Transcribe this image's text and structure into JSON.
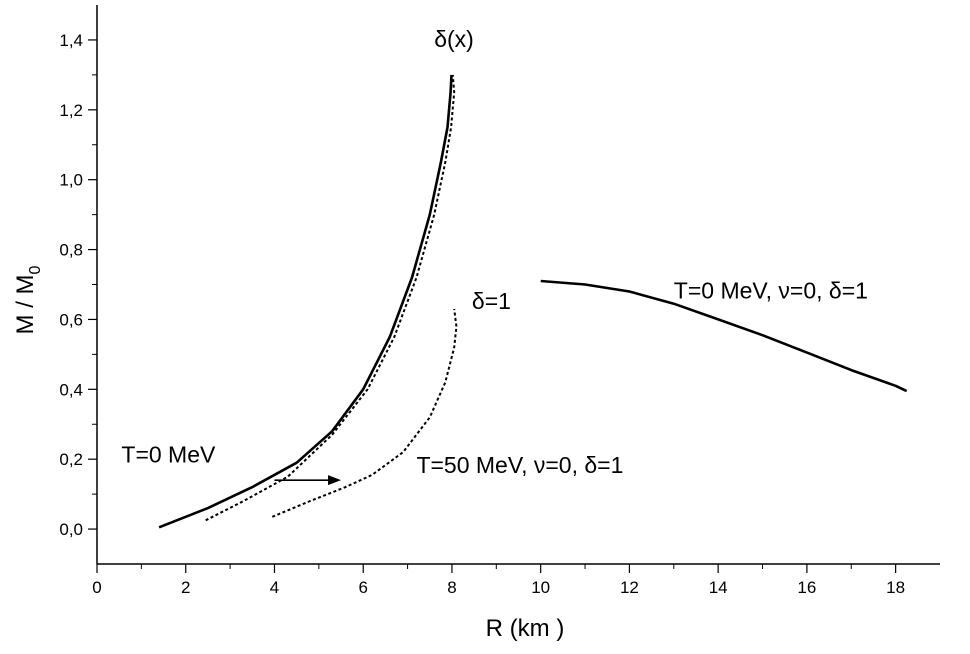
{
  "chart_data": {
    "type": "line",
    "xlabel": "R (km )",
    "ylabel": {
      "main": "M / M",
      "sub": "0"
    },
    "xlim": [
      0,
      19
    ],
    "ylim": [
      -0.1,
      1.5
    ],
    "x_ticks": [
      "0",
      "2",
      "4",
      "6",
      "8",
      "10",
      "12",
      "14",
      "16",
      "18"
    ],
    "y_ticks": [
      "0,0",
      "0,2",
      "0,4",
      "0,6",
      "0,8",
      "1,0",
      "1,2",
      "1,4"
    ],
    "grid": false,
    "series": [
      {
        "style": "solid",
        "points": [
          [
            1.4,
            0.005
          ],
          [
            2.5,
            0.06
          ],
          [
            3.5,
            0.12
          ],
          [
            4.5,
            0.19
          ],
          [
            5.3,
            0.28
          ],
          [
            6.0,
            0.4
          ],
          [
            6.6,
            0.55
          ],
          [
            7.1,
            0.72
          ],
          [
            7.5,
            0.9
          ],
          [
            7.75,
            1.05
          ],
          [
            7.9,
            1.15
          ],
          [
            7.97,
            1.25
          ],
          [
            7.99,
            1.3
          ]
        ]
      },
      {
        "style": "dotted",
        "points": [
          [
            2.45,
            0.025
          ],
          [
            3.3,
            0.08
          ],
          [
            4.3,
            0.15
          ],
          [
            5.3,
            0.27
          ],
          [
            6.1,
            0.4
          ],
          [
            6.7,
            0.55
          ],
          [
            7.2,
            0.72
          ],
          [
            7.6,
            0.9
          ],
          [
            7.85,
            1.05
          ],
          [
            7.98,
            1.15
          ],
          [
            8.05,
            1.25
          ],
          [
            8.02,
            1.3
          ]
        ]
      },
      {
        "style": "dotted",
        "points": [
          [
            3.95,
            0.035
          ],
          [
            4.8,
            0.08
          ],
          [
            5.6,
            0.12
          ],
          [
            6.2,
            0.155
          ],
          [
            6.9,
            0.22
          ],
          [
            7.5,
            0.32
          ],
          [
            7.85,
            0.42
          ],
          [
            8.05,
            0.52
          ],
          [
            8.1,
            0.58
          ],
          [
            8.05,
            0.63
          ]
        ]
      },
      {
        "style": "solid",
        "points": [
          [
            10.0,
            0.71
          ],
          [
            11.0,
            0.7
          ],
          [
            12.0,
            0.68
          ],
          [
            13.0,
            0.645
          ],
          [
            14.0,
            0.6
          ],
          [
            15.0,
            0.555
          ],
          [
            16.0,
            0.505
          ],
          [
            17.0,
            0.455
          ],
          [
            18.0,
            0.41
          ],
          [
            18.25,
            0.395
          ]
        ]
      }
    ],
    "annotations": [
      {
        "text": "δ(x)",
        "x": 7.6,
        "y": 1.38
      },
      {
        "text": "δ=1",
        "x": 8.45,
        "y": 0.63
      },
      {
        "text": "T=0 MeV, ν=0, δ=1",
        "x": 13.0,
        "y": 0.66
      },
      {
        "text": "T=0 MeV",
        "x": 0.55,
        "y": 0.19
      },
      {
        "text": "T=50 MeV, ν=0, δ=1",
        "x": 7.2,
        "y": 0.16
      }
    ],
    "arrow": {
      "from": [
        4.0,
        0.14
      ],
      "to": [
        5.5,
        0.14
      ]
    }
  }
}
